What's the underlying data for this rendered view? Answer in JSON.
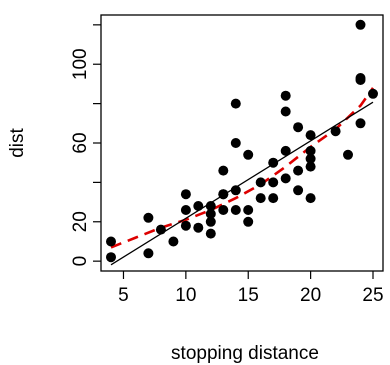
{
  "chart_data": {
    "type": "scatter",
    "xlabel": "stopping distance",
    "ylabel": "dist",
    "xlim": [
      4,
      25
    ],
    "ylim": [
      0,
      120
    ],
    "x_ticks": [
      "5",
      "10",
      "15",
      "20",
      "25"
    ],
    "y_ticks": [
      "0",
      "20",
      "60",
      "100"
    ],
    "y_minor_ticks": [
      40,
      80,
      120
    ],
    "grid": false,
    "legend": "none",
    "colors": {
      "points": "#000000",
      "fit_line": "#000000",
      "smooth_curve": "#dd0000"
    },
    "points": [
      [
        4,
        2
      ],
      [
        4,
        10
      ],
      [
        7,
        4
      ],
      [
        7,
        22
      ],
      [
        8,
        16
      ],
      [
        9,
        10
      ],
      [
        10,
        18
      ],
      [
        10,
        26
      ],
      [
        10,
        34
      ],
      [
        11,
        17
      ],
      [
        11,
        28
      ],
      [
        12,
        14
      ],
      [
        12,
        20
      ],
      [
        12,
        24
      ],
      [
        12,
        28
      ],
      [
        13,
        26
      ],
      [
        13,
        34
      ],
      [
        13,
        34
      ],
      [
        13,
        46
      ],
      [
        14,
        26
      ],
      [
        14,
        36
      ],
      [
        14,
        60
      ],
      [
        14,
        80
      ],
      [
        15,
        20
      ],
      [
        15,
        26
      ],
      [
        15,
        54
      ],
      [
        16,
        32
      ],
      [
        16,
        40
      ],
      [
        17,
        32
      ],
      [
        17,
        40
      ],
      [
        17,
        50
      ],
      [
        18,
        42
      ],
      [
        18,
        56
      ],
      [
        18,
        76
      ],
      [
        18,
        84
      ],
      [
        19,
        36
      ],
      [
        19,
        46
      ],
      [
        19,
        68
      ],
      [
        20,
        32
      ],
      [
        20,
        48
      ],
      [
        20,
        52
      ],
      [
        20,
        56
      ],
      [
        20,
        64
      ],
      [
        22,
        66
      ],
      [
        23,
        54
      ],
      [
        24,
        70
      ],
      [
        24,
        92
      ],
      [
        24,
        93
      ],
      [
        24,
        120
      ],
      [
        25,
        85
      ]
    ],
    "fit_line": {
      "x": [
        4,
        25
      ],
      "y": [
        -1.85,
        80.73
      ]
    },
    "smooth_curve": {
      "x": [
        4,
        6,
        8,
        10,
        12,
        14,
        16,
        18,
        20,
        22,
        24,
        25
      ],
      "y": [
        7,
        12,
        17,
        21,
        26,
        32,
        39,
        48,
        58,
        67,
        79,
        88
      ]
    }
  }
}
